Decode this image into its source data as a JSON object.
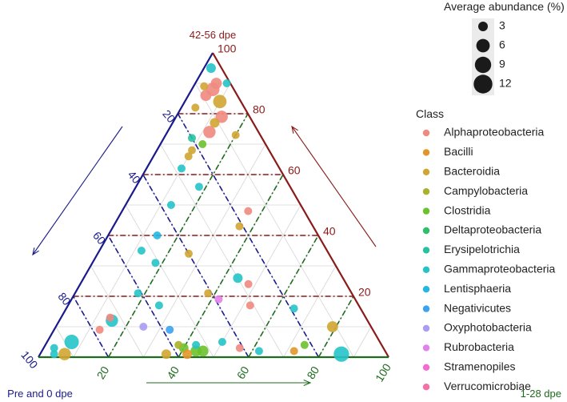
{
  "chart_data": {
    "type": "scatter",
    "subtype": "ternary",
    "corner_labels": {
      "top": "42-56 dpe",
      "bottom_left": "Pre and 0 dpe",
      "bottom_right": "1-28 dpe"
    },
    "ticks": {
      "top_axis": [
        "20",
        "40",
        "60",
        "80",
        "100"
      ],
      "left_axis": [
        "20",
        "40",
        "60",
        "80",
        "100"
      ],
      "right_axis": [
        "20",
        "40",
        "60",
        "80",
        "100"
      ]
    },
    "axis_colors": {
      "top_axis": "#8b1a1a",
      "left_axis": "#1a1a8c",
      "right_axis": "#1e6b1e"
    },
    "size_legend": {
      "title": "Average abundance (%)",
      "entries": [
        "3",
        "6",
        "9",
        "12"
      ]
    },
    "class_legend": {
      "title": "Class",
      "entries": [
        {
          "name": "Alphaproteobacteria",
          "color": "#f08a80"
        },
        {
          "name": "Bacilli",
          "color": "#e2962a"
        },
        {
          "name": "Bacteroidia",
          "color": "#d0a532"
        },
        {
          "name": "Campylobacteria",
          "color": "#a9b22a"
        },
        {
          "name": "Clostridia",
          "color": "#6cc22c"
        },
        {
          "name": "Deltaproteobacteria",
          "color": "#2fbf6a"
        },
        {
          "name": "Erysipelotrichia",
          "color": "#26c2a2"
        },
        {
          "name": "Gammaproteobacteria",
          "color": "#25c3c6"
        },
        {
          "name": "Lentisphaeria",
          "color": "#24b7e3"
        },
        {
          "name": "Negativicutes",
          "color": "#3aa2f0"
        },
        {
          "name": "Oxyphotobacteria",
          "color": "#a99cf2"
        },
        {
          "name": "Rubrobacteria",
          "color": "#e280ec"
        },
        {
          "name": "Stramenopiles",
          "color": "#f56bd0"
        },
        {
          "name": "Verrucomicrobiae",
          "color": "#f570a8"
        }
      ]
    },
    "grid": true,
    "points": [
      {
        "a": 95,
        "b": 2,
        "class": "Gammaproteobacteria",
        "abund": 3
      },
      {
        "a": 88,
        "b": 6,
        "class": "Alphaproteobacteria",
        "abund": 6
      },
      {
        "a": 84,
        "b": 10,
        "class": "Bacteroidia",
        "abund": 6
      },
      {
        "a": 90,
        "b": 6,
        "class": "Alphaproteobacteria",
        "abund": 4
      },
      {
        "a": 86,
        "b": 5,
        "class": "Alphaproteobacteria",
        "abund": 4
      },
      {
        "a": 79,
        "b": 13,
        "class": "Alphaproteobacteria",
        "abund": 5
      },
      {
        "a": 77,
        "b": 12,
        "class": "Bacteroidia",
        "abund": 3
      },
      {
        "a": 74,
        "b": 12,
        "class": "Alphaproteobacteria",
        "abund": 5
      },
      {
        "a": 89,
        "b": 3,
        "class": "Bacteroidia",
        "abund": 2
      },
      {
        "a": 90,
        "b": 9,
        "class": "Gammaproteobacteria",
        "abund": 2
      },
      {
        "a": 82,
        "b": 4,
        "class": "Bacteroidia",
        "abund": 2
      },
      {
        "a": 73,
        "b": 20,
        "class": "Bacteroidia",
        "abund": 2
      },
      {
        "a": 72,
        "b": 8,
        "class": "Erysipelotrichia",
        "abund": 2
      },
      {
        "a": 70,
        "b": 12,
        "class": "Clostridia",
        "abund": 2
      },
      {
        "a": 68,
        "b": 10,
        "class": "Bacteroidia",
        "abund": 2
      },
      {
        "a": 66,
        "b": 10,
        "class": "Bacteroidia",
        "abund": 2
      },
      {
        "a": 62,
        "b": 10,
        "class": "Gammaproteobacteria",
        "abund": 2
      },
      {
        "a": 56,
        "b": 18,
        "class": "Gammaproteobacteria",
        "abund": 2
      },
      {
        "a": 50,
        "b": 13,
        "class": "Gammaproteobacteria",
        "abund": 2
      },
      {
        "a": 48,
        "b": 36,
        "class": "Alphaproteobacteria",
        "abund": 2
      },
      {
        "a": 43,
        "b": 36,
        "class": "Bacteroidia",
        "abund": 2
      },
      {
        "a": 40,
        "b": 14,
        "class": "Lentisphaeria",
        "abund": 2
      },
      {
        "a": 34,
        "b": 26,
        "class": "Bacteroidia",
        "abund": 2
      },
      {
        "a": 35,
        "b": 12,
        "class": "Gammaproteobacteria",
        "abund": 2
      },
      {
        "a": 31,
        "b": 18,
        "class": "Gammaproteobacteria",
        "abund": 2
      },
      {
        "a": 26,
        "b": 44,
        "class": "Gammaproteobacteria",
        "abund": 3
      },
      {
        "a": 24,
        "b": 48,
        "class": "Alphaproteobacteria",
        "abund": 2
      },
      {
        "a": 21,
        "b": 38,
        "class": "Bacteroidia",
        "abund": 2
      },
      {
        "a": 19,
        "b": 42,
        "class": "Rubrobacteria",
        "abund": 2
      },
      {
        "a": 17,
        "b": 52,
        "class": "Alphaproteobacteria",
        "abund": 2
      },
      {
        "a": 21,
        "b": 18,
        "class": "Gammaproteobacteria",
        "abund": 2
      },
      {
        "a": 17,
        "b": 26,
        "class": "Gammaproteobacteria",
        "abund": 2
      },
      {
        "a": 12,
        "b": 15,
        "class": "Gammaproteobacteria",
        "abund": 5
      },
      {
        "a": 9,
        "b": 13,
        "class": "Alphaproteobacteria",
        "abund": 2
      },
      {
        "a": 16,
        "b": 65,
        "class": "Gammaproteobacteria",
        "abund": 2
      },
      {
        "a": 10,
        "b": 79,
        "class": "Bacteroidia",
        "abund": 4
      },
      {
        "a": 5,
        "b": 50,
        "class": "Gammaproteobacteria",
        "abund": 2
      },
      {
        "a": 4,
        "b": 43,
        "class": "Gammaproteobacteria",
        "abund": 2
      },
      {
        "a": 3,
        "b": 56,
        "class": "Alphaproteobacteria",
        "abund": 2
      },
      {
        "a": 2,
        "b": 46,
        "class": "Clostridia",
        "abund": 4
      },
      {
        "a": 2,
        "b": 44,
        "class": "Clostridia",
        "abund": 4
      },
      {
        "a": 3,
        "b": 40,
        "class": "Clostridia",
        "abund": 3
      },
      {
        "a": 4,
        "b": 38,
        "class": "Campylobacteria",
        "abund": 2
      },
      {
        "a": 1,
        "b": 42,
        "class": "Bacilli",
        "abund": 3
      },
      {
        "a": 1,
        "b": 36,
        "class": "Bacteroidia",
        "abund": 3
      },
      {
        "a": 2,
        "b": 62,
        "class": "Gammaproteobacteria",
        "abund": 2
      },
      {
        "a": 1,
        "b": 86,
        "class": "Gammaproteobacteria",
        "abund": 8
      },
      {
        "a": 2,
        "b": 72,
        "class": "Bacilli",
        "abund": 2
      },
      {
        "a": 4,
        "b": 74,
        "class": "Clostridia",
        "abund": 2
      },
      {
        "a": 9,
        "b": 33,
        "class": "Negativicutes",
        "abund": 2
      },
      {
        "a": 10,
        "b": 25,
        "class": "Oxyphotobacteria",
        "abund": 2
      },
      {
        "a": 5,
        "b": 7,
        "class": "Gammaproteobacteria",
        "abund": 7
      },
      {
        "a": 1,
        "b": 4,
        "class": "Gammaproteobacteria",
        "abund": 2
      },
      {
        "a": 3,
        "b": 3,
        "class": "Gammaproteobacteria",
        "abund": 2
      },
      {
        "a": 1,
        "b": 7,
        "class": "Bacteroidia",
        "abund": 5
      },
      {
        "a": 13,
        "b": 14,
        "class": "Alphaproteobacteria",
        "abund": 2
      }
    ]
  }
}
